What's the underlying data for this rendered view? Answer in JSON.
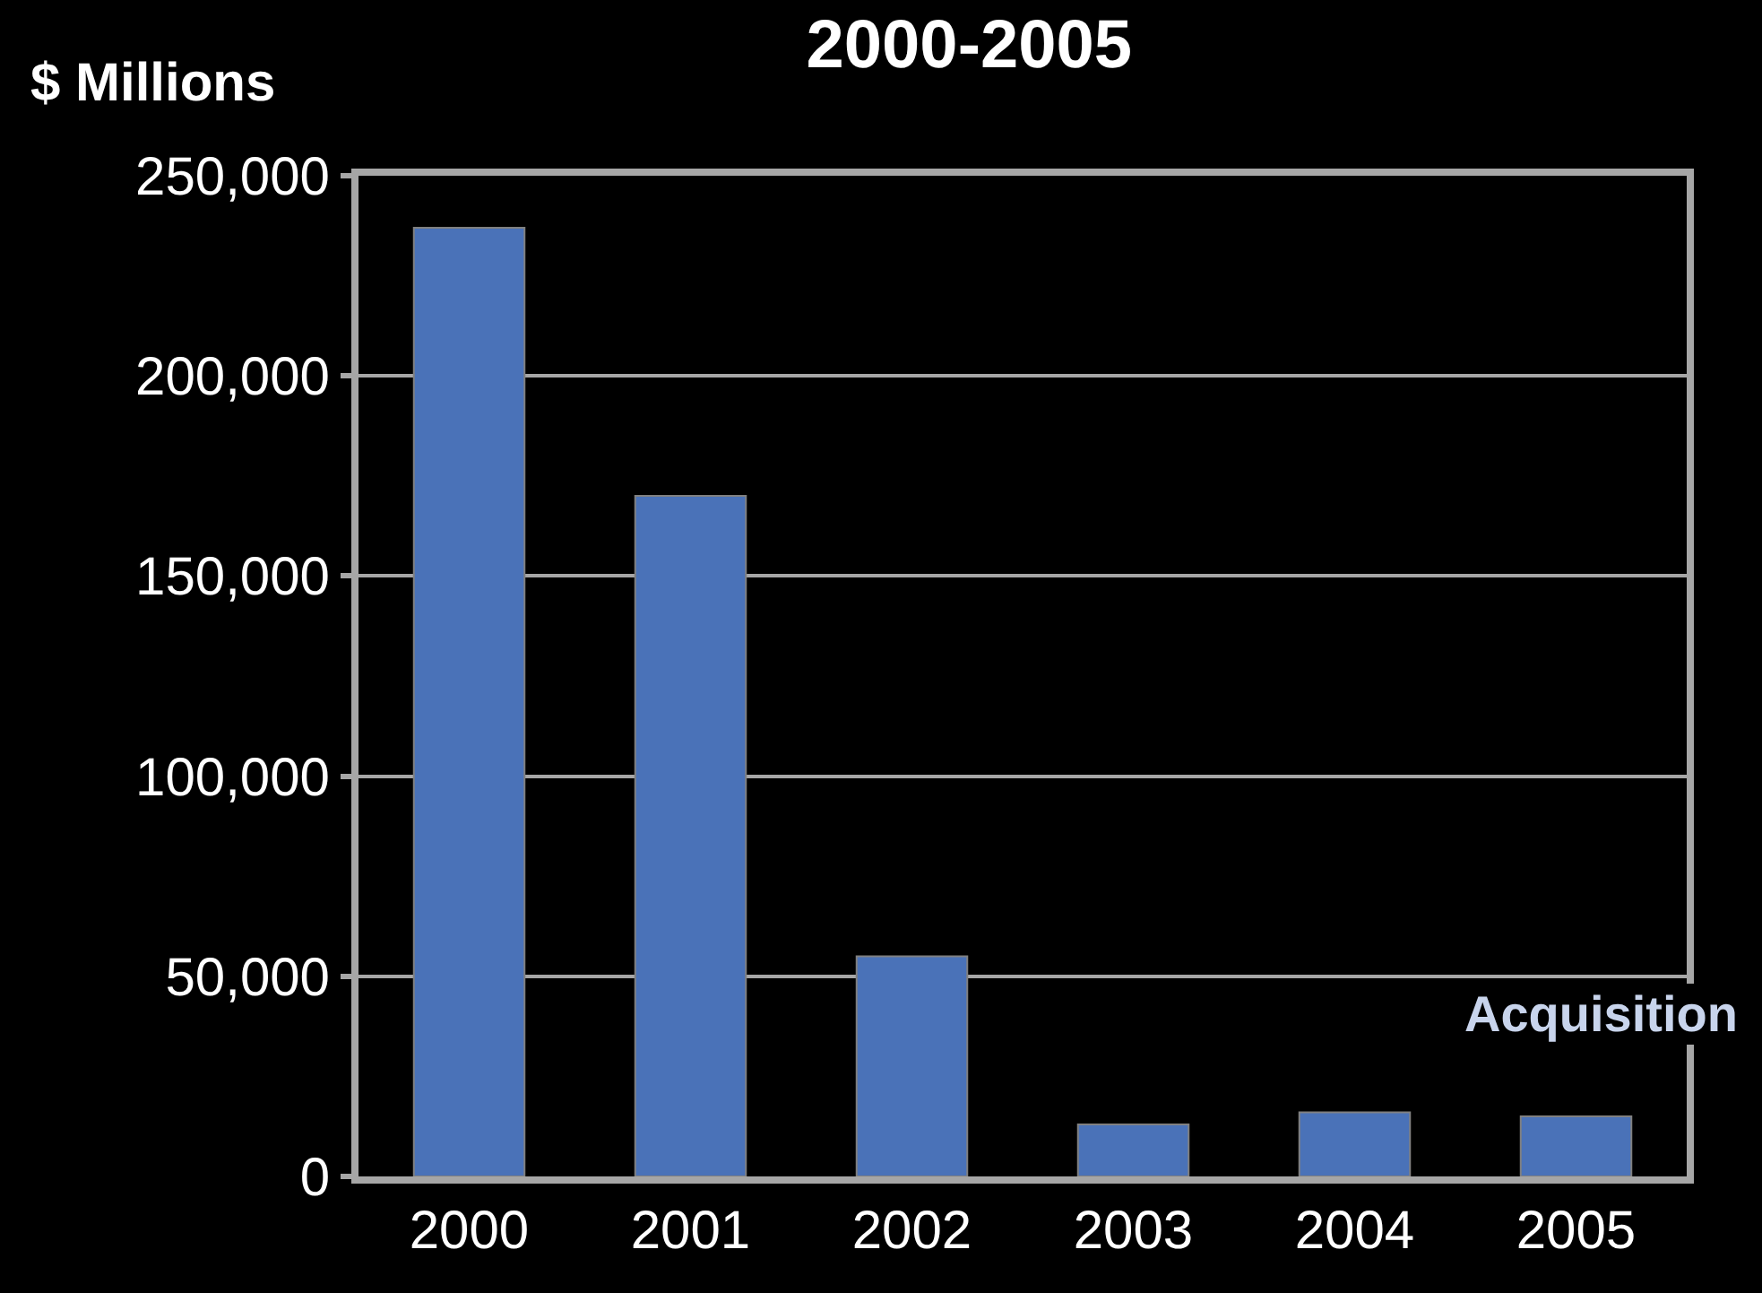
{
  "chart_data": {
    "type": "bar",
    "title": "2000-2005",
    "ylabel": "$ Millions",
    "categories": [
      "2000",
      "2001",
      "2002",
      "2003",
      "2004",
      "2005"
    ],
    "values": [
      237000,
      170000,
      55000,
      13000,
      16000,
      15000
    ],
    "color": "#4a72b8",
    "ylim": [
      0,
      250000
    ],
    "yticks": [
      {
        "value": 0,
        "label": "0"
      },
      {
        "value": 50000,
        "label": "50,000"
      },
      {
        "value": 100000,
        "label": "100,000"
      },
      {
        "value": 150000,
        "label": "150,000"
      },
      {
        "value": 200000,
        "label": "200,000"
      },
      {
        "value": 250000,
        "label": "250,000"
      }
    ],
    "grid": "y",
    "annotations": [
      "Acquisition"
    ]
  }
}
